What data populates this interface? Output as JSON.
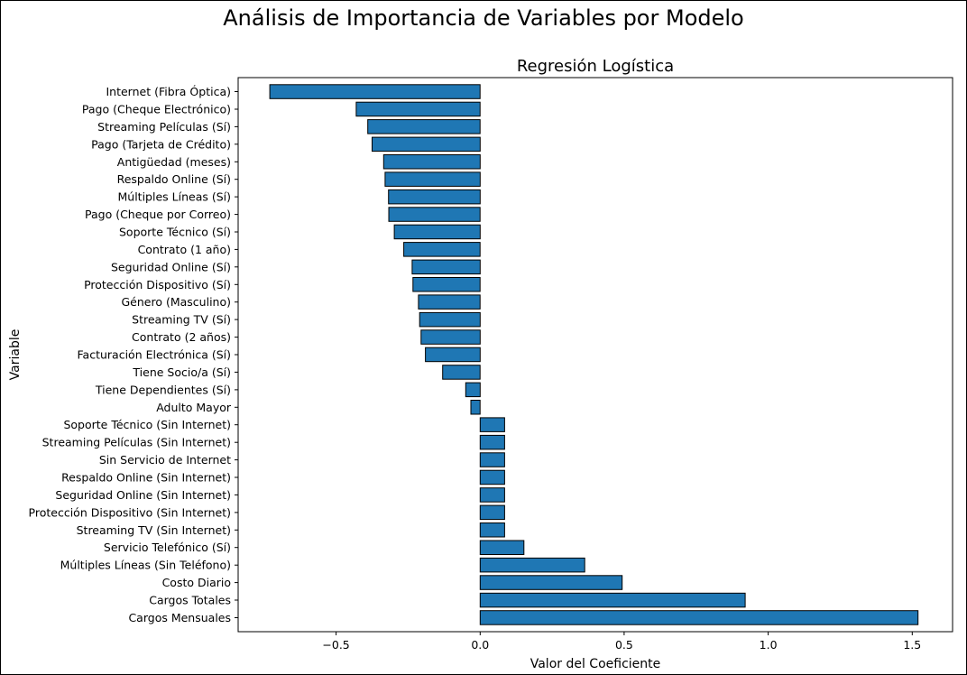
{
  "figure_title": "Análisis de Importancia de Variables por Modelo",
  "chart_data": {
    "type": "bar",
    "orientation": "horizontal",
    "title": "Regresión Logística",
    "xlabel": "Valor del Coeficiente",
    "ylabel": "Variable",
    "xlim": [
      -0.84,
      1.64
    ],
    "xticks": [
      -0.5,
      0.0,
      0.5,
      1.0,
      1.5
    ],
    "xtick_labels": [
      "−0.5",
      "0.0",
      "0.5",
      "1.0",
      "1.5"
    ],
    "bar_color": "#1f77b4",
    "edge_color": "#000000",
    "grid": false,
    "categories": [
      "Internet (Fibra Óptica)",
      "Pago (Cheque Electrónico)",
      "Streaming Películas (Sí)",
      "Pago (Tarjeta de Crédito)",
      "Antigüedad (meses)",
      "Respaldo Online (Sí)",
      "Múltiples Líneas (Sí)",
      "Pago (Cheque por Correo)",
      "Soporte Técnico (Sí)",
      "Contrato (1 año)",
      "Seguridad Online (Sí)",
      "Protección Dispositivo (Sí)",
      "Género (Masculino)",
      "Streaming TV (Sí)",
      "Contrato (2 años)",
      "Facturación Electrónica (Sí)",
      "Tiene Socio/a (Sí)",
      "Tiene Dependientes (Sí)",
      "Adulto Mayor",
      "Soporte Técnico (Sin Internet)",
      "Streaming Películas (Sin Internet)",
      "Sin Servicio de Internet",
      "Respaldo Online (Sin Internet)",
      "Seguridad Online (Sin Internet)",
      "Protección Dispositivo (Sin Internet)",
      "Streaming TV (Sin Internet)",
      "Servicio Telefónico (Sí)",
      "Múltiples Líneas (Sin Teléfono)",
      "Costo Diario",
      "Cargos Totales",
      "Cargos Mensuales"
    ],
    "values": [
      -0.73,
      -0.43,
      -0.39,
      -0.375,
      -0.335,
      -0.33,
      -0.318,
      -0.317,
      -0.298,
      -0.265,
      -0.236,
      -0.233,
      -0.214,
      -0.21,
      -0.205,
      -0.19,
      -0.13,
      -0.05,
      -0.032,
      0.085,
      0.085,
      0.085,
      0.085,
      0.085,
      0.085,
      0.085,
      0.152,
      0.363,
      0.493,
      0.92,
      1.52
    ]
  }
}
